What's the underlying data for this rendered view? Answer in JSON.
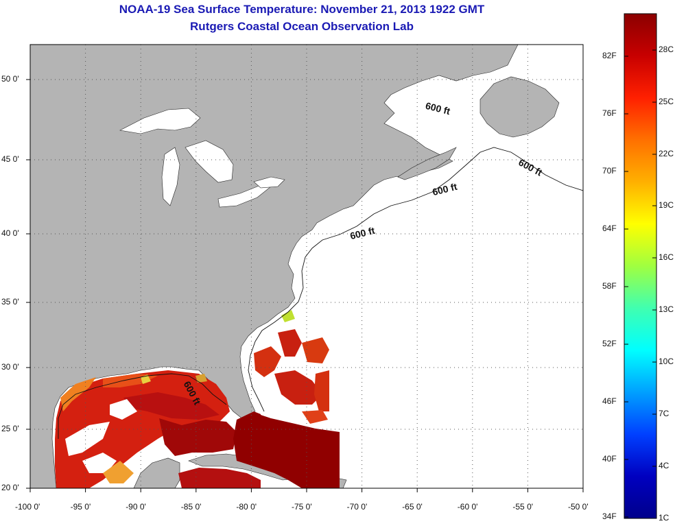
{
  "header": {
    "title": "NOAA-19 Sea Surface Temperature:  November 21, 2013 1922 GMT",
    "subtitle": "Rutgers Coastal Ocean Observation Lab"
  },
  "map": {
    "lon_labels": [
      "-100 0'",
      "-95 0'",
      "-90 0'",
      "-85 0'",
      "-80 0'",
      "-75 0'",
      "-70 0'",
      "-65 0'",
      "-60 0'",
      "-55 0'",
      "-50 0'"
    ],
    "lon_values": [
      -100,
      -95,
      -90,
      -85,
      -80,
      -75,
      -70,
      -65,
      -60,
      -55,
      -50
    ],
    "lat_labels": [
      "50 0'",
      "45 0'",
      "40 0'",
      "35 0'",
      "30 0'",
      "25 0'",
      "20 0'"
    ],
    "lat_values": [
      50,
      45,
      40,
      35,
      30,
      25,
      20
    ],
    "bathymetry_label": "600 ft",
    "land_color": "#b4b4b4",
    "no_data_color": "#ffffff",
    "gridline_style": "dotted"
  },
  "colorbar": {
    "fahrenheit_labels": [
      "82F",
      "76F",
      "70F",
      "64F",
      "58F",
      "52F",
      "46F",
      "40F",
      "34F"
    ],
    "celsius_labels": [
      "28C",
      "25C",
      "22C",
      "19C",
      "16C",
      "13C",
      "10C",
      "7C",
      "4C",
      "1C"
    ],
    "colors": [
      "#8b0000",
      "#c80000",
      "#ff2000",
      "#ff7000",
      "#ffb000",
      "#ffff00",
      "#a0ff40",
      "#40ffb0",
      "#00ffff",
      "#00a0ff",
      "#0040ff",
      "#0000c0",
      "#00008b"
    ]
  }
}
